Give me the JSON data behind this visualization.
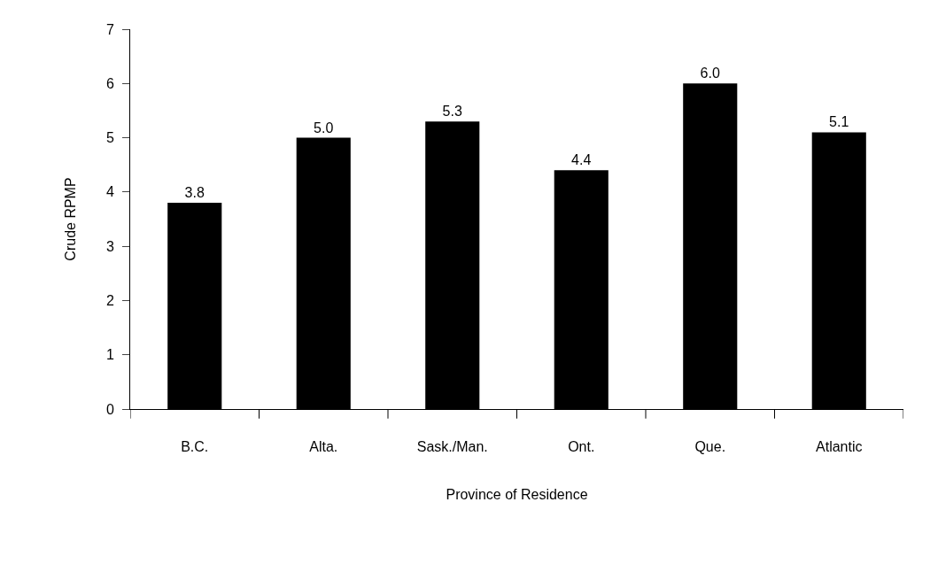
{
  "chart_data": {
    "type": "bar",
    "xlabel": "Province of Residence",
    "ylabel": "Crude RPMP",
    "categories": [
      "B.C.",
      "Alta.",
      "Sask./Man.",
      "Ont.",
      "Que.",
      "Atlantic"
    ],
    "values": [
      3.8,
      5.0,
      5.3,
      4.4,
      6.0,
      5.1
    ],
    "value_labels": [
      "3.8",
      "5.0",
      "5.3",
      "4.4",
      "6.0",
      "5.1"
    ],
    "color": "#000000",
    "ylim": [
      0,
      7
    ],
    "yticks": [
      0,
      1,
      2,
      3,
      4,
      5,
      6,
      7
    ]
  }
}
